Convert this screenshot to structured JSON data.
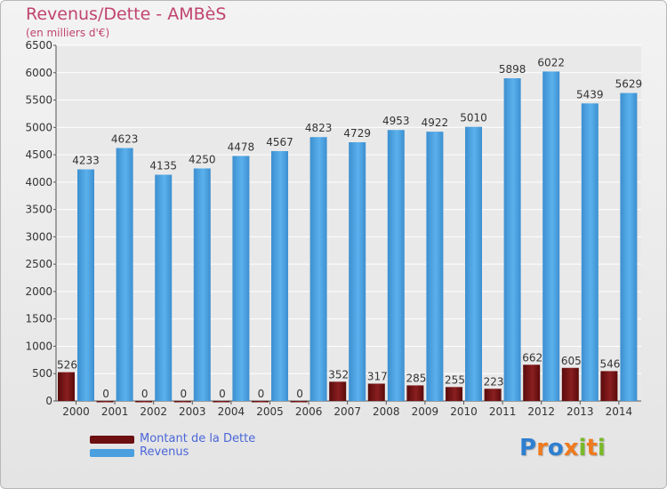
{
  "header": {
    "title": "Revenus/Dette - AMBèS",
    "subtitle": "(en milliers d'€)"
  },
  "colors": {
    "dette": "#6b0f10",
    "revenus": "#4aa0de",
    "title": "#c0446e",
    "legend_text": "#4a66d8"
  },
  "legend": {
    "items": [
      {
        "label": "Montant de la Dette",
        "color": "#6b0f10"
      },
      {
        "label": "Revenus",
        "color": "#4aa0de"
      }
    ]
  },
  "logo": {
    "text": "Proxiti",
    "letter_colors": [
      "#2e7fd0",
      "#f07a1e",
      "#2e7fd0",
      "#f07a1e",
      "#7ab929",
      "#f07a1e",
      "#7ab929"
    ]
  },
  "chart_data": {
    "type": "bar",
    "title": "Revenus/Dette - AMBèS",
    "subtitle": "(en milliers d'€)",
    "categories": [
      "2000",
      "2001",
      "2002",
      "2003",
      "2004",
      "2005",
      "2006",
      "2007",
      "2008",
      "2009",
      "2010",
      "2011",
      "2012",
      "2013",
      "2014"
    ],
    "series": [
      {
        "name": "Montant de la Dette",
        "values": [
          526,
          0,
          0,
          0,
          0,
          0,
          0,
          352,
          317,
          285,
          255,
          223,
          662,
          605,
          546
        ]
      },
      {
        "name": "Revenus",
        "values": [
          4233,
          4623,
          4135,
          4250,
          4478,
          4567,
          4823,
          4729,
          4953,
          4922,
          5010,
          5898,
          6022,
          5439,
          5629
        ]
      }
    ],
    "ylim": [
      0,
      6500
    ],
    "yticks": [
      0,
      500,
      1000,
      1500,
      2000,
      2500,
      3000,
      3500,
      4000,
      4500,
      5000,
      5500,
      6000,
      6500
    ],
    "grid": true,
    "legend_position": "bottom-left"
  }
}
